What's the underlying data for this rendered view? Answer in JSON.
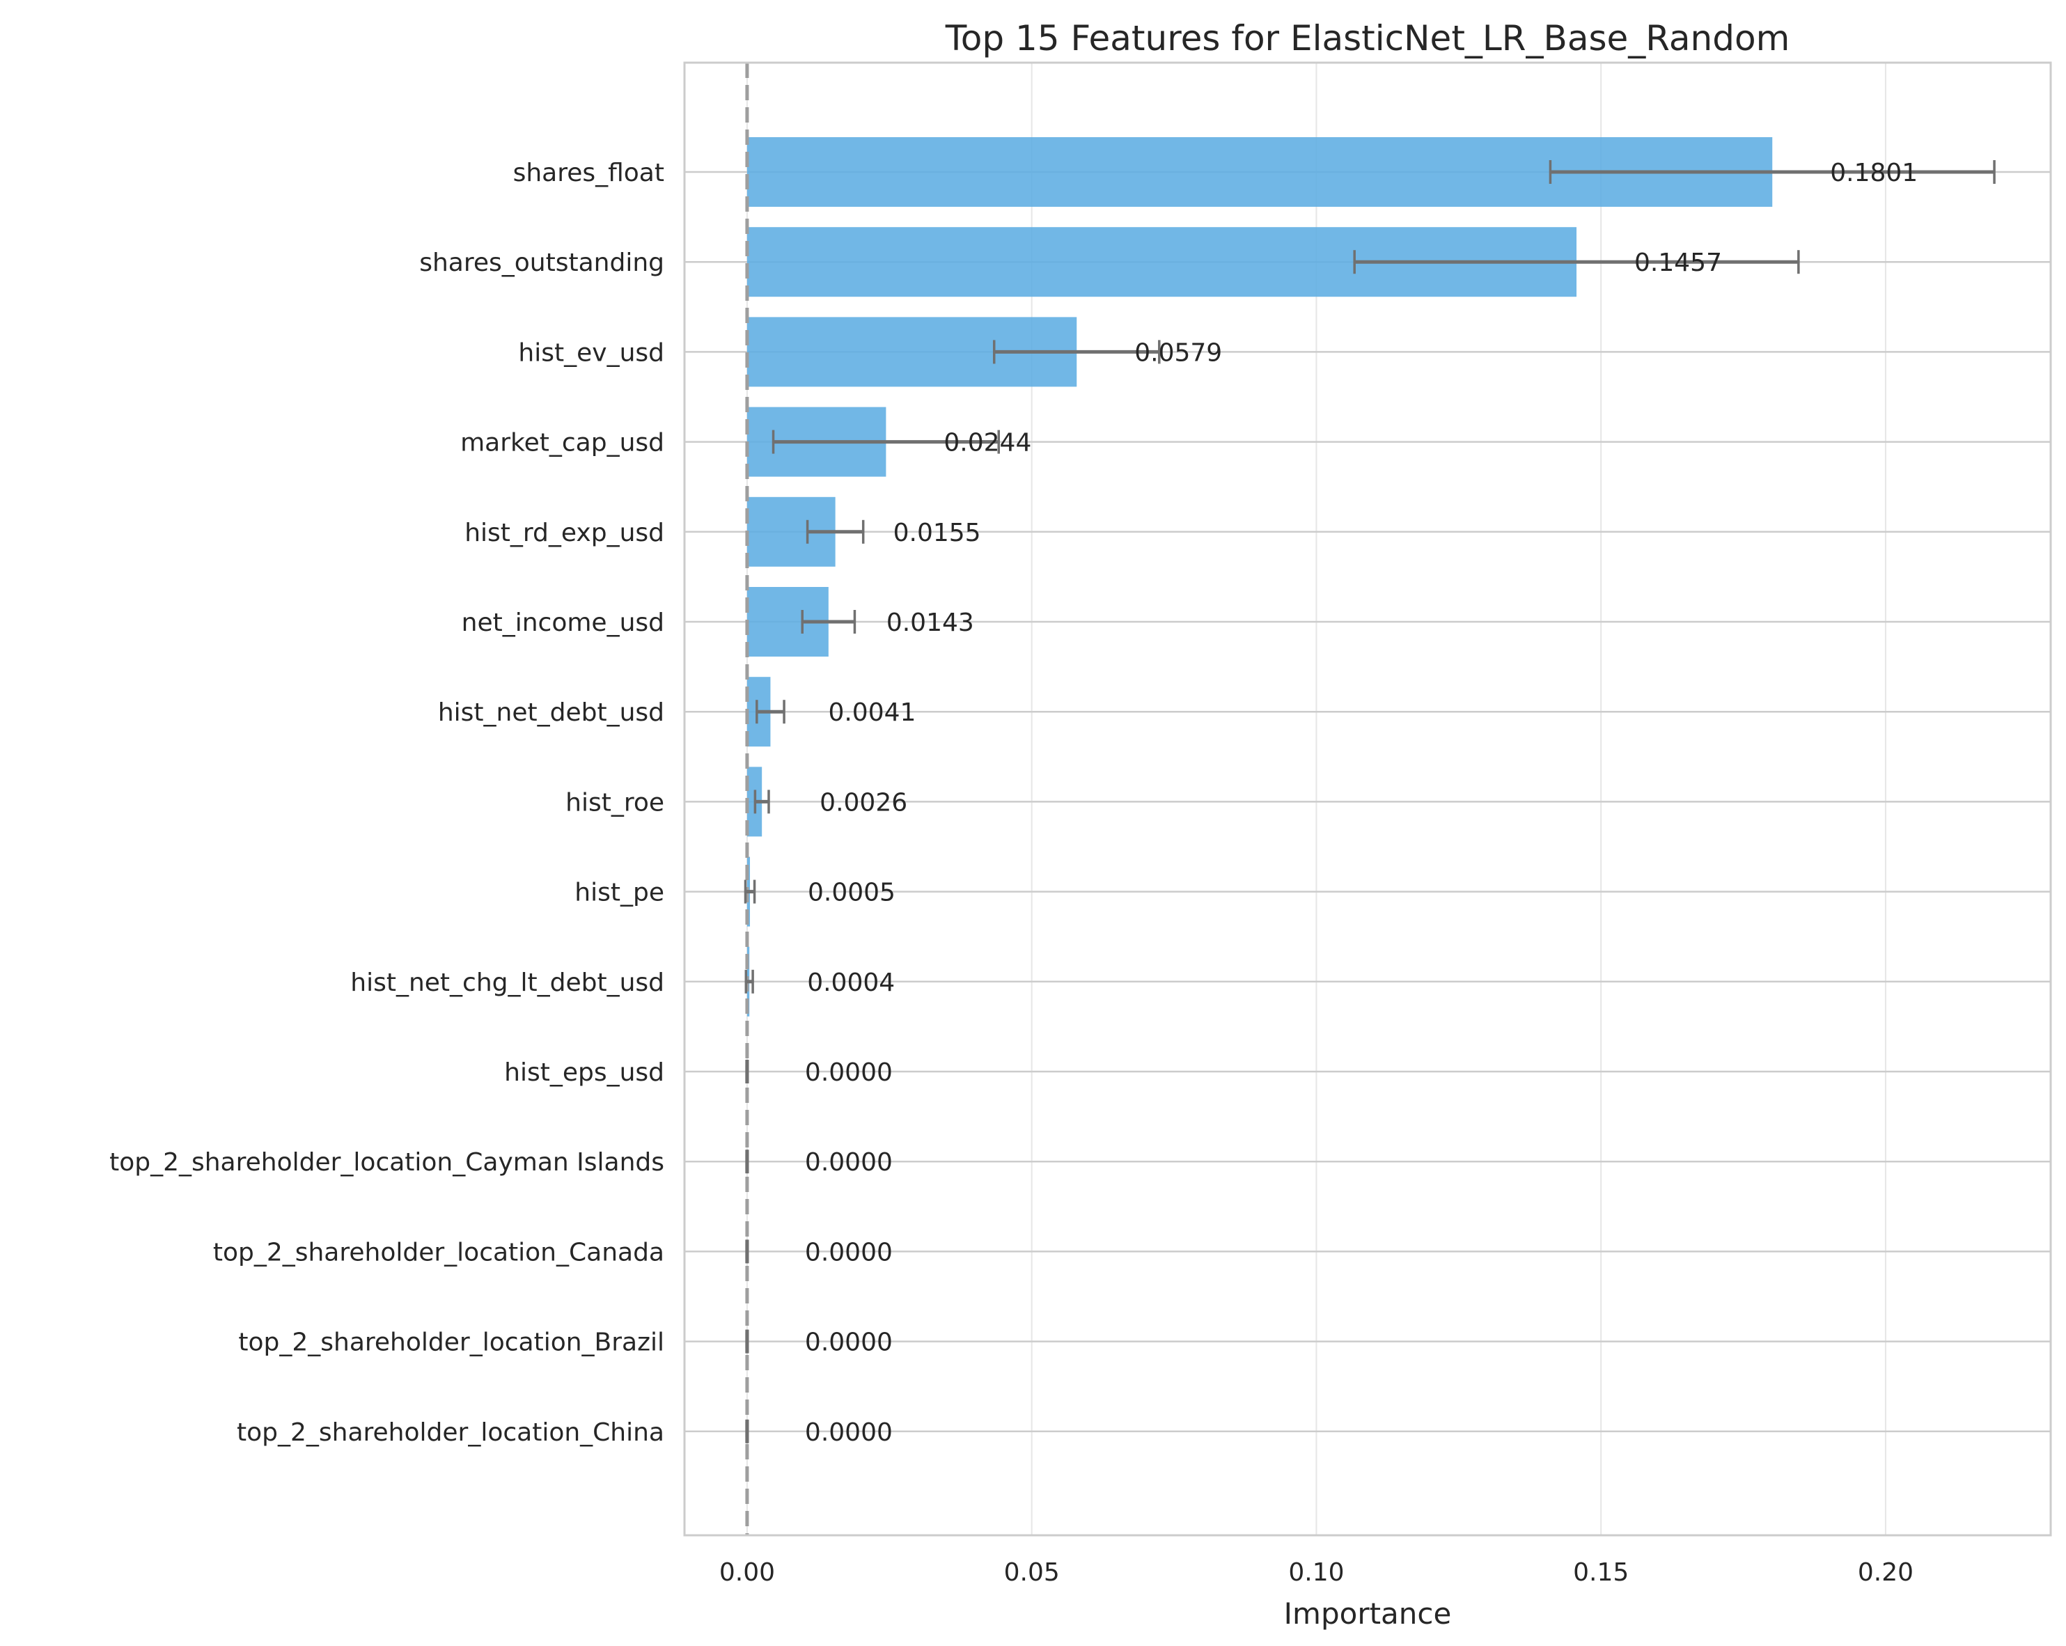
{
  "chart_data": {
    "type": "bar",
    "orientation": "horizontal",
    "title": "Top 15 Features for ElasticNet_LR_Base_Random",
    "xlabel": "Importance",
    "ylabel": "",
    "xlim": [
      -0.011,
      0.229
    ],
    "xticks": [
      0.0,
      0.05,
      0.1,
      0.15,
      0.2
    ],
    "xtick_labels": [
      "0.00",
      "0.05",
      "0.10",
      "0.15",
      "0.20"
    ],
    "grid": true,
    "reference_line": 0.0,
    "colors": {
      "bar": "#5dade2",
      "errorbar": "#707070",
      "reference_line": "#9e9e9e",
      "grid": "#cccccc",
      "axes": "#cccccc"
    },
    "categories": [
      "shares_float",
      "shares_outstanding",
      "hist_ev_usd",
      "market_cap_usd",
      "hist_rd_exp_usd",
      "net_income_usd",
      "hist_net_debt_usd",
      "hist_roe",
      "hist_pe",
      "hist_net_chg_lt_debt_usd",
      "hist_eps_usd",
      "top_2_shareholder_location_Cayman Islands",
      "top_2_shareholder_location_Canada",
      "top_2_shareholder_location_Brazil",
      "top_2_shareholder_location_China"
    ],
    "values": [
      0.1801,
      0.1457,
      0.0579,
      0.0244,
      0.0155,
      0.0143,
      0.0041,
      0.0026,
      0.0005,
      0.0004,
      0.0,
      0.0,
      0.0,
      0.0,
      0.0
    ],
    "errors": [
      0.039,
      0.039,
      0.0145,
      0.0198,
      0.0049,
      0.0046,
      0.0024,
      0.0012,
      0.0008,
      0.0006,
      0.0001,
      0.0001,
      0.0001,
      0.0001,
      0.0001
    ],
    "value_labels": [
      "0.1801",
      "0.1457",
      "0.0579",
      "0.0244",
      "0.0155",
      "0.0143",
      "0.0041",
      "0.0026",
      "0.0005",
      "0.0004",
      "0.0000",
      "0.0000",
      "0.0000",
      "0.0000",
      "0.0000"
    ]
  }
}
